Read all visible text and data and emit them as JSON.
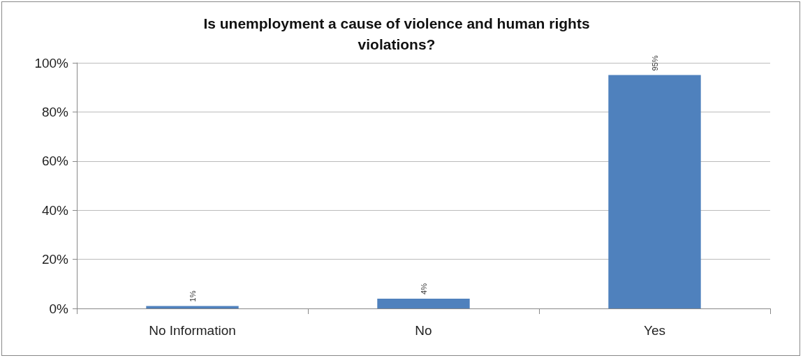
{
  "chart_data": {
    "type": "bar",
    "title": "Is unemployment a cause of violence and human rights\nviolations?",
    "categories": [
      "No Information",
      "No",
      "Yes"
    ],
    "values": [
      1,
      4,
      95
    ],
    "color": "#4f81bd",
    "value_labels": [
      "1%",
      "4%",
      "95%"
    ],
    "ylim": [
      0,
      100
    ],
    "yticks": [
      {
        "value": 0,
        "label": "0%"
      },
      {
        "value": 20,
        "label": "20%"
      },
      {
        "value": 40,
        "label": "40%"
      },
      {
        "value": 60,
        "label": "60%"
      },
      {
        "value": 80,
        "label": "80%"
      },
      {
        "value": 100,
        "label": "100%"
      }
    ],
    "grid": "y"
  }
}
